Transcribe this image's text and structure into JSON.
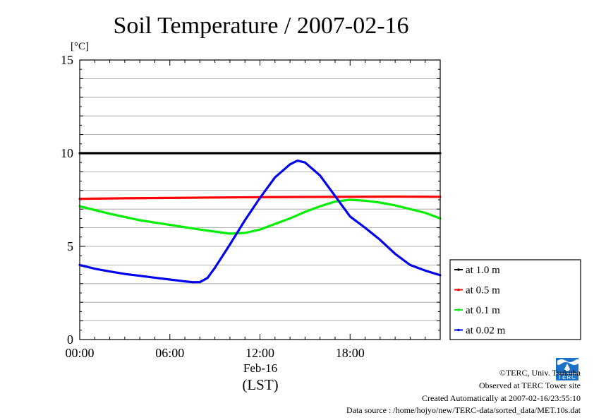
{
  "chart_data": {
    "type": "line",
    "title": "Soil Temperature / 2007-02-16",
    "ylabel": "[°C]",
    "ylim": [
      0,
      15
    ],
    "yticks": [
      0,
      5,
      10,
      15
    ],
    "xlim": [
      0,
      24
    ],
    "xticks": [
      {
        "value": 0,
        "label": "00:00"
      },
      {
        "value": 6,
        "label": "06:00"
      },
      {
        "value": 12,
        "label": "12:00"
      },
      {
        "value": 18,
        "label": "18:00"
      }
    ],
    "xlabel_date": "Feb-16",
    "xlabel_tz": "(LST)",
    "grid": true,
    "legend_position": "right-bottom",
    "series": [
      {
        "name": "at 1.0 m",
        "color": "#000000",
        "x": [
          0,
          3,
          6,
          9,
          12,
          15,
          18,
          21,
          24
        ],
        "y": [
          10.0,
          10.0,
          10.0,
          10.0,
          10.0,
          10.0,
          10.0,
          10.0,
          10.0
        ]
      },
      {
        "name": "at 0.5 m",
        "color": "#ff0000",
        "x": [
          0,
          3,
          6,
          9,
          12,
          15,
          18,
          21,
          24
        ],
        "y": [
          7.55,
          7.58,
          7.6,
          7.62,
          7.64,
          7.65,
          7.66,
          7.67,
          7.66
        ]
      },
      {
        "name": "at 0.1 m",
        "color": "#00ee00",
        "x": [
          0,
          2,
          4,
          6,
          8,
          10,
          11,
          12,
          13,
          14,
          15,
          16,
          17,
          18,
          19,
          20,
          21,
          22,
          23,
          24
        ],
        "y": [
          7.15,
          6.75,
          6.4,
          6.15,
          5.9,
          5.68,
          5.72,
          5.9,
          6.2,
          6.5,
          6.85,
          7.15,
          7.4,
          7.5,
          7.45,
          7.35,
          7.2,
          7.0,
          6.8,
          6.5
        ]
      },
      {
        "name": "at 0.02 m",
        "color": "#0000ee",
        "x": [
          0,
          1,
          2,
          3,
          4,
          5,
          6,
          7,
          7.5,
          8,
          8.5,
          9,
          10,
          11,
          12,
          13,
          14,
          14.5,
          15,
          16,
          17,
          18,
          19,
          20,
          21,
          22,
          23,
          24
        ],
        "y": [
          4.0,
          3.8,
          3.65,
          3.52,
          3.42,
          3.32,
          3.22,
          3.12,
          3.08,
          3.08,
          3.3,
          3.85,
          5.1,
          6.4,
          7.6,
          8.7,
          9.4,
          9.6,
          9.5,
          8.8,
          7.7,
          6.6,
          6.0,
          5.35,
          4.6,
          4.0,
          3.7,
          3.45
        ]
      }
    ]
  },
  "footer": {
    "copyright": "©TERC, Univ. Tsukuba",
    "observed": "Observed at TERC Tower site",
    "created": "Created Automatically at 2007-02-16/23:55:10",
    "source": "Data source : /home/hojyo/new/TERC-data/sorted_data/MET.10s.dat",
    "logo_text": "TERC"
  }
}
